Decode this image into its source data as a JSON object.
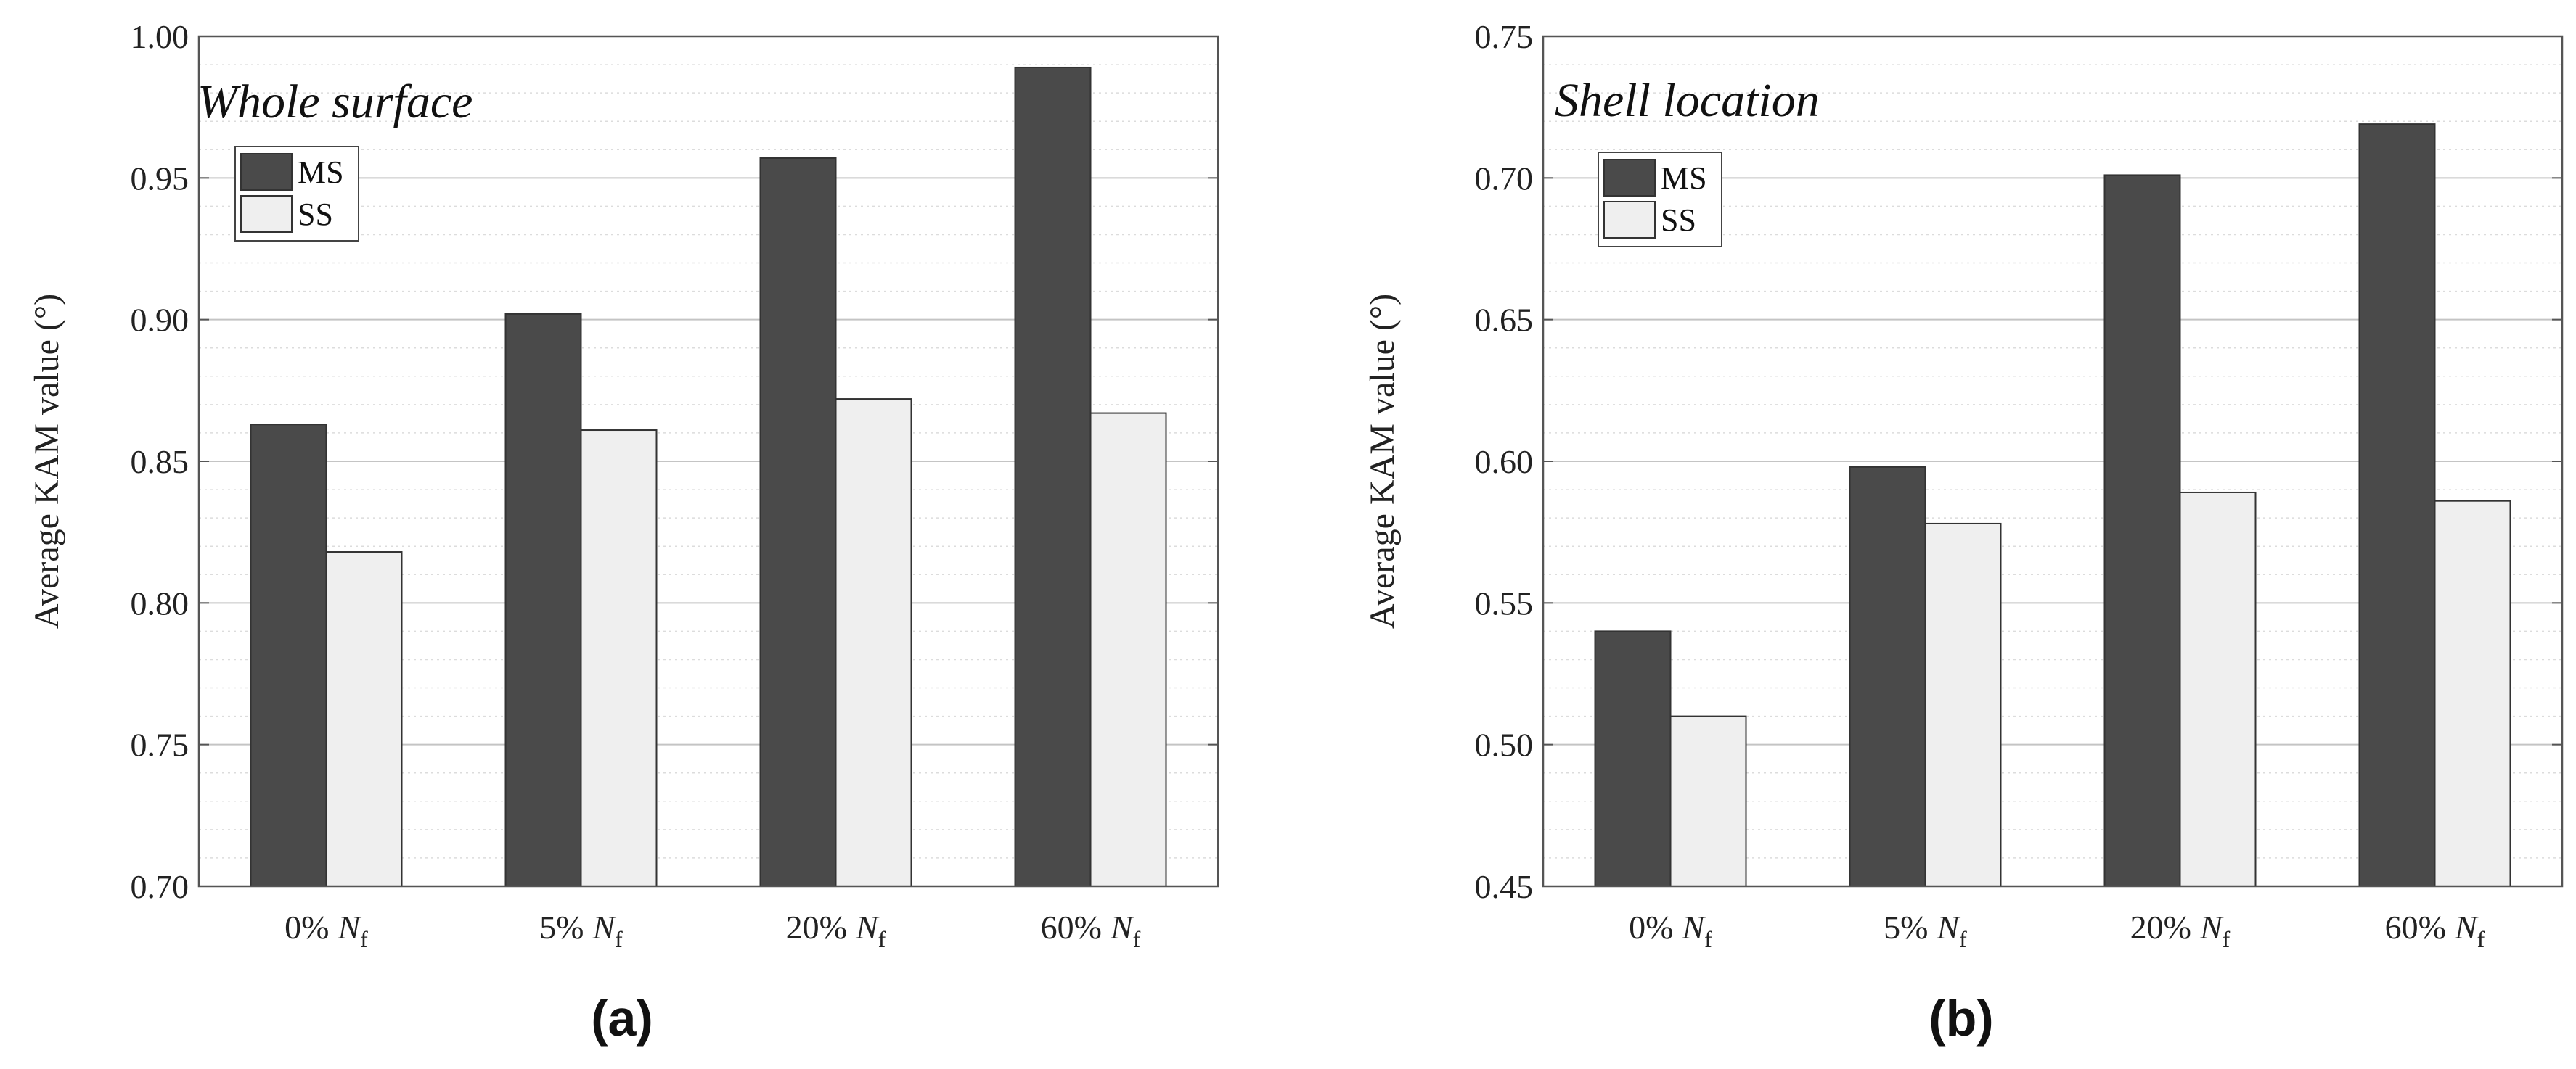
{
  "chart_data": [
    {
      "type": "bar",
      "panel_label": "(a)",
      "annotation": "Whole surface",
      "ylabel": "Average KAM value (°)",
      "xlabel": "",
      "ylim": [
        0.7,
        1.0
      ],
      "yticks": [
        "0.70",
        "0.75",
        "0.80",
        "0.85",
        "0.90",
        "0.95",
        "1.00"
      ],
      "grid": true,
      "legend_position": "top-left",
      "categories": [
        {
          "pct": "0%",
          "sym": "N",
          "sub": "f"
        },
        {
          "pct": "5%",
          "sym": "N",
          "sub": "f"
        },
        {
          "pct": "20%",
          "sym": "N",
          "sub": "f"
        },
        {
          "pct": "60%",
          "sym": "N",
          "sub": "f"
        }
      ],
      "series": [
        {
          "name": "MS",
          "color": "#4a4a4a",
          "values": [
            0.863,
            0.902,
            0.957,
            0.989
          ]
        },
        {
          "name": "SS",
          "color": "#efefef",
          "values": [
            0.818,
            0.861,
            0.872,
            0.867
          ]
        }
      ]
    },
    {
      "type": "bar",
      "panel_label": "(b)",
      "annotation": "Shell location",
      "ylabel": "Average KAM value (°)",
      "xlabel": "",
      "ylim": [
        0.45,
        0.75
      ],
      "yticks": [
        "0.45",
        "0.50",
        "0.55",
        "0.60",
        "0.65",
        "0.70",
        "0.75"
      ],
      "grid": true,
      "legend_position": "top-left",
      "categories": [
        {
          "pct": "0%",
          "sym": "N",
          "sub": "f"
        },
        {
          "pct": "5%",
          "sym": "N",
          "sub": "f"
        },
        {
          "pct": "20%",
          "sym": "N",
          "sub": "f"
        },
        {
          "pct": "60%",
          "sym": "N",
          "sub": "f"
        }
      ],
      "series": [
        {
          "name": "MS",
          "color": "#4a4a4a",
          "values": [
            0.54,
            0.598,
            0.701,
            0.719
          ]
        },
        {
          "name": "SS",
          "color": "#efefef",
          "values": [
            0.51,
            0.578,
            0.589,
            0.586
          ]
        }
      ]
    }
  ]
}
